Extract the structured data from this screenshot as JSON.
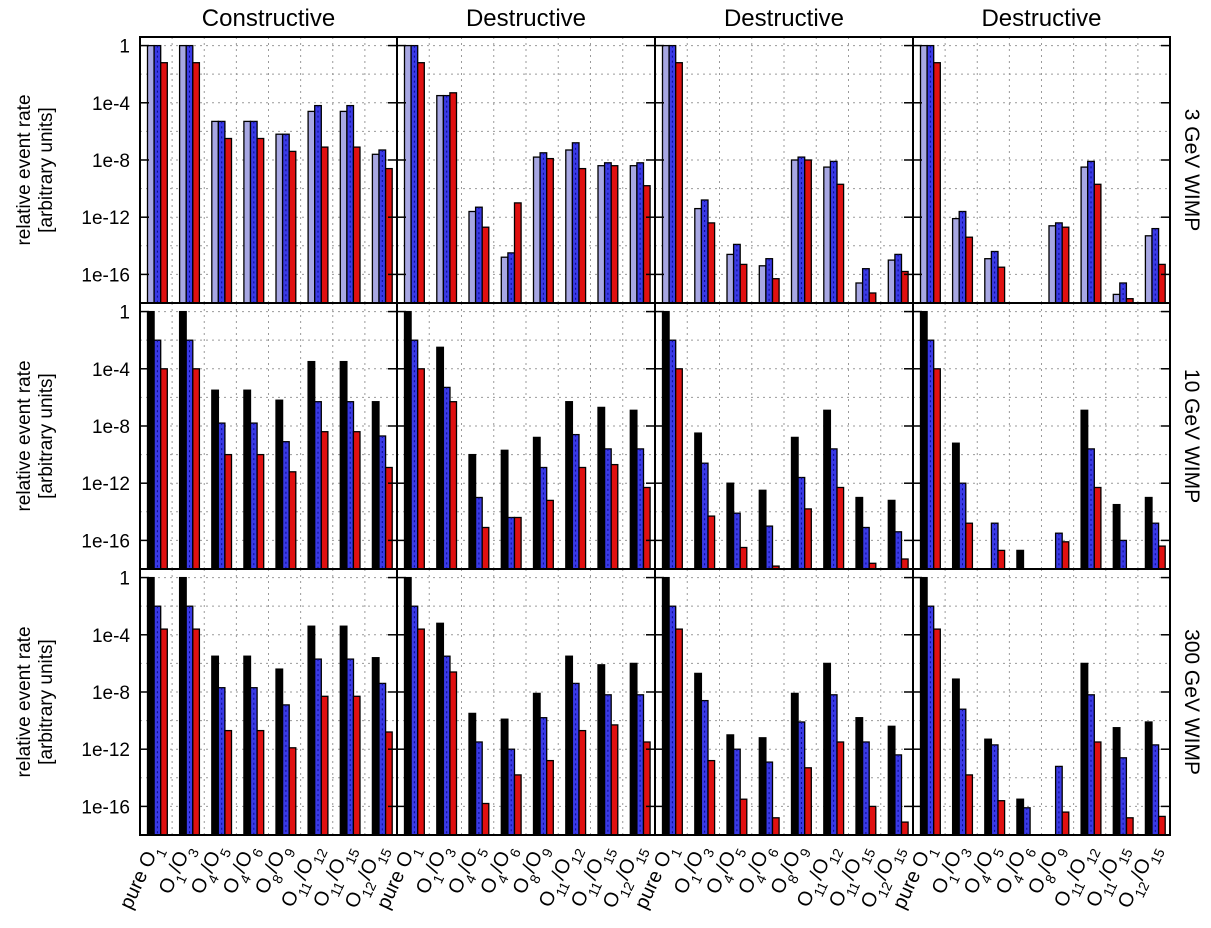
{
  "chart_data": {
    "type": "bar",
    "y_scale": "log10",
    "ylim": [
      1e-18,
      10
    ],
    "grid": true,
    "y_ticks": [
      "1",
      "1e-4",
      "1e-8",
      "1e-12",
      "1e-16"
    ],
    "y_label_line1": "relative event rate",
    "y_label_line2": "[arbitrary units]",
    "columns": [
      "Constructive",
      "Destructive",
      "Destructive",
      "Destructive"
    ],
    "rows": [
      "3 GeV WIMP",
      "10 GeV WIMP",
      "300 GeV WIMP"
    ],
    "categories": [
      {
        "t": "pure ",
        "m": "O",
        "s": "1"
      },
      {
        "m": "O",
        "s": "1",
        "m2": "/O",
        "s2": "3"
      },
      {
        "m": "O",
        "s": "4",
        "m2": "/O",
        "s2": "5"
      },
      {
        "m": "O",
        "s": "4",
        "m2": "/O",
        "s2": "6"
      },
      {
        "m": "O",
        "s": "8",
        "m2": "/O",
        "s2": "9"
      },
      {
        "m": "O",
        "s": "11",
        "m2": "/O",
        "s2": "12"
      },
      {
        "m": "O",
        "s": "11",
        "m2": "/O",
        "s2": "15"
      },
      {
        "m": "O",
        "s": "12",
        "m2": "/O",
        "s2": "15"
      }
    ],
    "colors": [
      "#a7a7e3",
      "#3a3ae6",
      "#e01010",
      "#000000"
    ],
    "panels": [
      [
        [
          [
            0,
            0,
            -1.2
          ],
          [
            0,
            0,
            -1.2
          ],
          [
            -5.3,
            -5.3,
            -6.5
          ],
          [
            -5.3,
            -5.3,
            -6.5
          ],
          [
            -6.2,
            -6.2,
            -7.4
          ],
          [
            -4.6,
            -4.2,
            -7.1
          ],
          [
            -4.6,
            -4.2,
            -7.1
          ],
          [
            -7.6,
            -7.3,
            -8.6
          ]
        ],
        [
          [
            0,
            0,
            -1.2
          ],
          [
            -3.5,
            -3.5,
            -3.3
          ],
          [
            -11.6,
            -11.3,
            -12.7
          ],
          [
            -14.8,
            -14.5,
            -11.0
          ],
          [
            -7.8,
            -7.5,
            -7.9
          ],
          [
            -7.3,
            -6.8,
            -8.6
          ],
          [
            -8.4,
            -8.2,
            -8.4
          ],
          [
            -8.4,
            -8.2,
            -9.8
          ]
        ],
        [
          [
            0,
            0,
            -1.2
          ],
          [
            -11.4,
            -10.8,
            -12.4
          ],
          [
            -14.6,
            -13.9,
            -15.3
          ],
          [
            -15.4,
            -14.9,
            -16.3
          ],
          [
            -8.0,
            -7.8,
            -8.0
          ],
          [
            -8.5,
            -8.1,
            -9.7
          ],
          [
            -16.6,
            -15.6,
            -17.3
          ],
          [
            -15.0,
            -14.6,
            -15.8
          ]
        ],
        [
          [
            0,
            0,
            -1.2
          ],
          [
            -12.1,
            -11.6,
            -13.4
          ],
          [
            -14.9,
            -14.4,
            -15.5
          ],
          [
            null,
            null,
            null
          ],
          [
            -12.6,
            -12.4,
            -12.7
          ],
          [
            -8.5,
            -8.1,
            -9.7
          ],
          [
            -17.4,
            -16.6,
            -17.7
          ],
          [
            -13.3,
            -12.8,
            -15.3
          ]
        ]
      ],
      [
        [
          [
            0,
            -2,
            -4
          ],
          [
            0,
            -2,
            -4
          ],
          [
            -5.5,
            -7.8,
            -10.0
          ],
          [
            -5.5,
            -7.8,
            -10.0
          ],
          [
            -6.2,
            -9.1,
            -11.2
          ],
          [
            -3.5,
            -6.3,
            -8.4
          ],
          [
            -3.5,
            -6.3,
            -8.4
          ],
          [
            -6.3,
            -8.7,
            -10.9
          ]
        ],
        [
          [
            0,
            -2,
            -4
          ],
          [
            -2.5,
            -5.3,
            -6.3
          ],
          [
            -10.0,
            -13.0,
            -15.1
          ],
          [
            -9.7,
            -14.4,
            -14.4
          ],
          [
            -8.8,
            -10.9,
            -13.2
          ],
          [
            -6.3,
            -8.6,
            -10.9
          ],
          [
            -6.7,
            -9.6,
            -10.7
          ],
          [
            -6.9,
            -9.6,
            -12.3
          ]
        ],
        [
          [
            0,
            -2,
            -4
          ],
          [
            -8.5,
            -10.6,
            -14.3
          ],
          [
            -12.0,
            -14.1,
            -16.5
          ],
          [
            -12.5,
            -15.0,
            -17.8
          ],
          [
            -8.8,
            -11.6,
            -13.8
          ],
          [
            -6.9,
            -9.6,
            -12.3
          ],
          [
            -13.0,
            -15.1,
            -17.6
          ],
          [
            -13.2,
            -15.4,
            -17.3
          ]
        ],
        [
          [
            0,
            -2,
            -4
          ],
          [
            -9.2,
            -12.0,
            -14.8
          ],
          [
            null,
            -14.8,
            -16.7
          ],
          [
            -16.7,
            null,
            null
          ],
          [
            null,
            -15.5,
            -16.1
          ],
          [
            -6.9,
            -9.6,
            -12.3
          ],
          [
            -13.5,
            -16.0,
            null
          ],
          [
            -13.0,
            -14.8,
            -16.4
          ]
        ]
      ],
      [
        [
          [
            0,
            -2,
            -3.6
          ],
          [
            0,
            -2,
            -3.6
          ],
          [
            -5.5,
            -7.7,
            -10.7
          ],
          [
            -5.5,
            -7.7,
            -10.7
          ],
          [
            -6.4,
            -8.9,
            -11.9
          ],
          [
            -3.4,
            -5.7,
            -8.3
          ],
          [
            -3.4,
            -5.7,
            -8.3
          ],
          [
            -5.6,
            -7.4,
            -10.8
          ]
        ],
        [
          [
            0,
            -2,
            -3.6
          ],
          [
            -3.2,
            -5.5,
            -6.6
          ],
          [
            -9.5,
            -11.5,
            -15.8
          ],
          [
            -9.9,
            -12.0,
            -13.8
          ],
          [
            -8.1,
            -9.8,
            -12.8
          ],
          [
            -5.5,
            -7.4,
            -10.7
          ],
          [
            -6.1,
            -8.2,
            -10.3
          ],
          [
            -6.0,
            -8.2,
            -11.5
          ]
        ],
        [
          [
            0,
            -2,
            -3.6
          ],
          [
            -6.7,
            -8.6,
            -12.8
          ],
          [
            -11.0,
            -12.0,
            -15.5
          ],
          [
            -11.2,
            -12.9,
            -16.8
          ],
          [
            -8.1,
            -10.1,
            -13.3
          ],
          [
            -6.0,
            -8.2,
            -11.5
          ],
          [
            -9.8,
            -11.5,
            -16.0
          ],
          [
            -10.4,
            -12.4,
            -17.1
          ]
        ],
        [
          [
            0,
            -2,
            -3.6
          ],
          [
            -7.1,
            -9.2,
            -13.8
          ],
          [
            -11.3,
            -11.7,
            -15.6
          ],
          [
            -15.5,
            -16.1,
            null
          ],
          [
            null,
            -13.2,
            -16.4
          ],
          [
            -6.0,
            -8.2,
            -11.5
          ],
          [
            -10.5,
            -12.6,
            -16.8
          ],
          [
            -10.1,
            -11.7,
            -16.7
          ]
        ]
      ]
    ]
  }
}
